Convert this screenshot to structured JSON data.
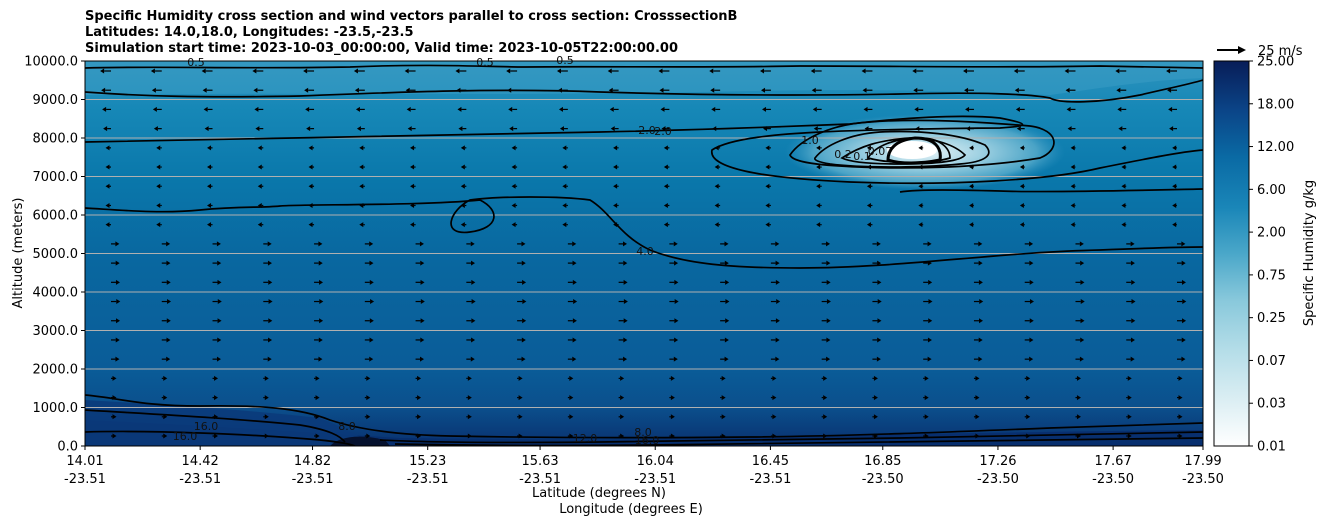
{
  "chart_data": {
    "type": "contour",
    "title_lines": [
      "Specific Humidity cross section and wind vectors parallel to cross section: CrosssectionB",
      "Latitudes: 14.0,18.0, Longitudes: -23.5,-23.5",
      "Simulation start time: 2023-10-03_00:00:00, Valid time: 2023-10-05T22:00:00.00"
    ],
    "ylabel": "Altitude (meters)",
    "xlabel_lat": "Latitude (degrees N)",
    "xlabel_lon": "Longitude (degrees E)",
    "ylim": [
      0,
      10000
    ],
    "yticks": [
      "0.0",
      "1000.0",
      "2000.0",
      "3000.0",
      "4000.0",
      "5000.0",
      "6000.0",
      "7000.0",
      "8000.0",
      "9000.0",
      "10000.0"
    ],
    "xticks_lat": [
      "14.01",
      "14.42",
      "14.82",
      "15.23",
      "15.63",
      "16.04",
      "16.45",
      "16.85",
      "17.26",
      "17.67",
      "17.99"
    ],
    "xticks_lon": [
      "-23.51",
      "-23.51",
      "-23.51",
      "-23.51",
      "-23.51",
      "-23.51",
      "-23.51",
      "-23.50",
      "-23.50",
      "-23.50",
      "-23.50"
    ],
    "colorbar": {
      "label": "Specific Humidity g/kg",
      "tick_labels": [
        "0.01",
        "0.03",
        "0.07",
        "0.25",
        "0.75",
        "2.00",
        "6.00",
        "12.00",
        "18.00",
        "25.00"
      ]
    },
    "quiver_key": "25 m/s",
    "contour_labels": [
      "0.5",
      "0.5",
      "0.5",
      "2.0",
      "2.0",
      "1.0",
      "0.2",
      "0.1",
      "0.07",
      "4.0",
      "8.0",
      "16.0",
      "16.0",
      "12.0",
      "8.0",
      "16.0"
    ],
    "colors": {
      "dark": "#081d58",
      "mid": "#0b6fa5",
      "light": "#e8f4f8",
      "contour": "#000000"
    }
  }
}
